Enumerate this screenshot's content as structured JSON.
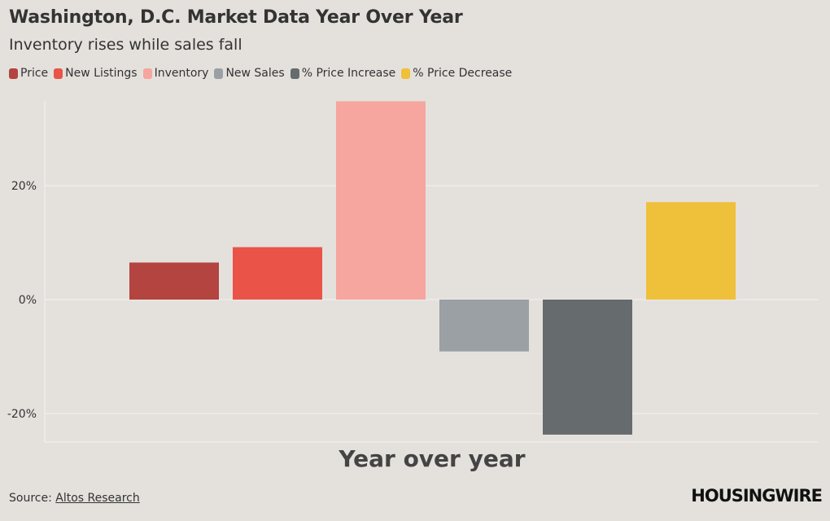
{
  "header": {
    "title": "Washington, D.C. Market Data Year Over Year",
    "subtitle": "Inventory rises while sales fall"
  },
  "legend": [
    {
      "label": "Price",
      "color": "#b3443f"
    },
    {
      "label": "New Listings",
      "color": "#ea5348"
    },
    {
      "label": "Inventory",
      "color": "#f7a59f"
    },
    {
      "label": "New Sales",
      "color": "#9aa0a3"
    },
    {
      "label": "% Price Increase",
      "color": "#666b6e"
    },
    {
      "label": "% Price Decrease",
      "color": "#efc03a"
    }
  ],
  "footer": {
    "source_prefix": "Source: ",
    "source_link": "Altos Research",
    "logo": "HOUSINGWIRE"
  },
  "chart_data": {
    "type": "bar",
    "categories": [
      "Year over year"
    ],
    "xlabel": "Year over year",
    "ylabel": "",
    "ylim": [
      -25,
      35
    ],
    "yticks": [
      -20,
      0,
      20
    ],
    "ytick_labels": [
      "-20%",
      "0%",
      "20%"
    ],
    "grid": true,
    "legend_position": "top-left",
    "series": [
      {
        "name": "Price",
        "values": [
          6.5
        ],
        "color": "#b3443f"
      },
      {
        "name": "New Listings",
        "values": [
          9.2
        ],
        "color": "#ea5348"
      },
      {
        "name": "Inventory",
        "values": [
          34.8
        ],
        "color": "#f7a59f"
      },
      {
        "name": "New Sales",
        "values": [
          -9.1
        ],
        "color": "#9aa0a3"
      },
      {
        "name": "% Price Increase",
        "values": [
          -23.7
        ],
        "color": "#666b6e"
      },
      {
        "name": "% Price Decrease",
        "values": [
          17.1
        ],
        "color": "#efc03a"
      }
    ]
  }
}
